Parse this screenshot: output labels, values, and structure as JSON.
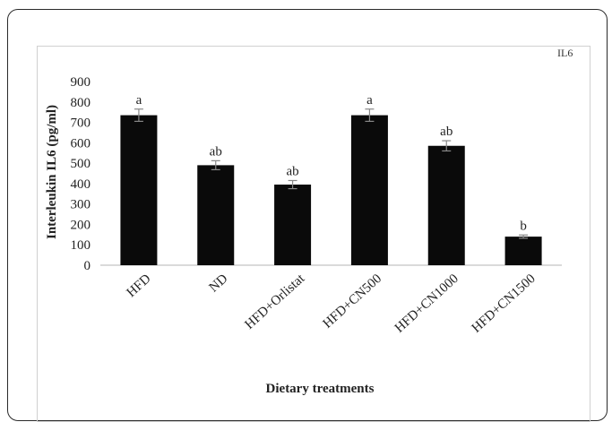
{
  "chart_data": {
    "type": "bar",
    "title": "",
    "corner_label": "IL6",
    "xlabel": "Dietary treatments",
    "ylabel": "Interleukin IL6 (pg/ml)",
    "ylim": [
      0,
      900
    ],
    "yticks": [
      0,
      100,
      200,
      300,
      400,
      500,
      600,
      700,
      800,
      900
    ],
    "grid": false,
    "categories": [
      "HFD",
      "ND",
      "HFD+Orlistat",
      "HFD+CN500",
      "HFD+CN1000",
      "HFD+CN1500"
    ],
    "values": [
      735,
      490,
      395,
      735,
      585,
      140
    ],
    "errors": [
      30,
      22,
      20,
      30,
      25,
      8
    ],
    "significance": [
      "a",
      "ab",
      "ab",
      "a",
      "ab",
      "b"
    ],
    "bar_color": "#0a0a0a"
  }
}
